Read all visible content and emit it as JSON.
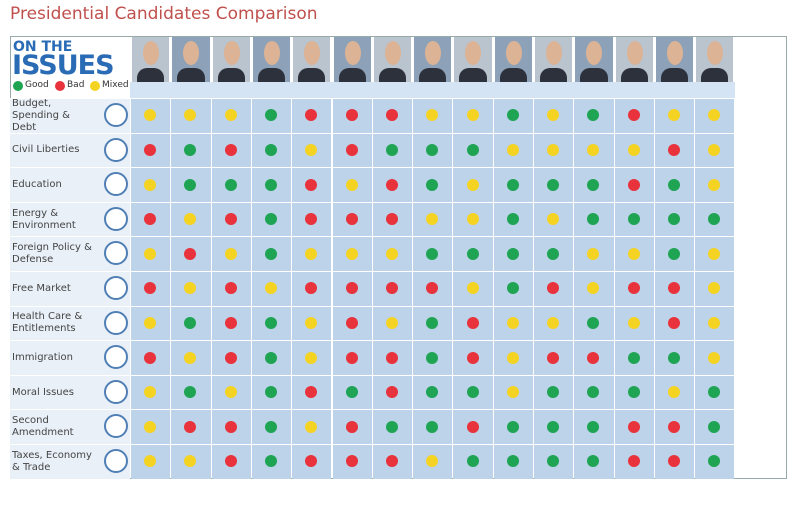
{
  "title": "Presidential Candidates Comparison",
  "logo": {
    "line1": "ON THE",
    "line2": "ISSUES"
  },
  "legend": [
    {
      "label": "Good",
      "color": "#1fa453"
    },
    {
      "label": "Bad",
      "color": "#e8323c"
    },
    {
      "label": "Mixed",
      "color": "#f5d322"
    }
  ],
  "issues": [
    {
      "label": "Budget, Spending & Debt",
      "ratings": [
        "Mixed",
        "Mixed",
        "Mixed",
        "Good",
        "Bad",
        "Bad",
        "Bad",
        "Mixed",
        "Mixed",
        "Good",
        "Mixed",
        "Good",
        "Bad",
        "Mixed",
        "Mixed"
      ]
    },
    {
      "label": "Civil Liberties",
      "ratings": [
        "Bad",
        "Good",
        "Bad",
        "Good",
        "Mixed",
        "Bad",
        "Good",
        "Good",
        "Good",
        "Mixed",
        "Mixed",
        "Mixed",
        "Mixed",
        "Bad",
        "Mixed"
      ]
    },
    {
      "label": "Education",
      "ratings": [
        "Mixed",
        "Good",
        "Good",
        "Good",
        "Bad",
        "Mixed",
        "Bad",
        "Good",
        "Mixed",
        "Good",
        "Good",
        "Good",
        "Bad",
        "Good",
        "Mixed"
      ]
    },
    {
      "label": "Energy & Environment",
      "ratings": [
        "Bad",
        "Mixed",
        "Bad",
        "Good",
        "Bad",
        "Bad",
        "Bad",
        "Mixed",
        "Mixed",
        "Good",
        "Mixed",
        "Good",
        "Good",
        "Good",
        "Good"
      ]
    },
    {
      "label": "Foreign Policy & Defense",
      "ratings": [
        "Mixed",
        "Bad",
        "Mixed",
        "Good",
        "Mixed",
        "Mixed",
        "Mixed",
        "Good",
        "Good",
        "Good",
        "Good",
        "Mixed",
        "Mixed",
        "Good",
        "Mixed"
      ]
    },
    {
      "label": "Free Market",
      "ratings": [
        "Bad",
        "Mixed",
        "Bad",
        "Mixed",
        "Bad",
        "Bad",
        "Bad",
        "Bad",
        "Mixed",
        "Good",
        "Bad",
        "Mixed",
        "Bad",
        "Bad",
        "Mixed"
      ]
    },
    {
      "label": "Health Care & Entitlements",
      "ratings": [
        "Mixed",
        "Good",
        "Bad",
        "Good",
        "Mixed",
        "Bad",
        "Mixed",
        "Good",
        "Bad",
        "Mixed",
        "Mixed",
        "Good",
        "Mixed",
        "Bad",
        "Mixed"
      ]
    },
    {
      "label": "Immigration",
      "ratings": [
        "Bad",
        "Mixed",
        "Bad",
        "Good",
        "Mixed",
        "Bad",
        "Bad",
        "Good",
        "Bad",
        "Mixed",
        "Bad",
        "Bad",
        "Good",
        "Good",
        "Mixed"
      ]
    },
    {
      "label": "Moral Issues",
      "ratings": [
        "Mixed",
        "Good",
        "Mixed",
        "Good",
        "Bad",
        "Good",
        "Bad",
        "Good",
        "Good",
        "Mixed",
        "Good",
        "Good",
        "Good",
        "Mixed",
        "Good"
      ]
    },
    {
      "label": "Second Amendment",
      "ratings": [
        "Mixed",
        "Bad",
        "Bad",
        "Good",
        "Mixed",
        "Bad",
        "Good",
        "Good",
        "Bad",
        "Good",
        "Good",
        "Good",
        "Bad",
        "Bad",
        "Good"
      ]
    },
    {
      "label": "Taxes, Economy & Trade",
      "ratings": [
        "Mixed",
        "Mixed",
        "Bad",
        "Good",
        "Bad",
        "Bad",
        "Bad",
        "Mixed",
        "Good",
        "Good",
        "Good",
        "Good",
        "Bad",
        "Bad",
        "Good"
      ]
    }
  ]
}
